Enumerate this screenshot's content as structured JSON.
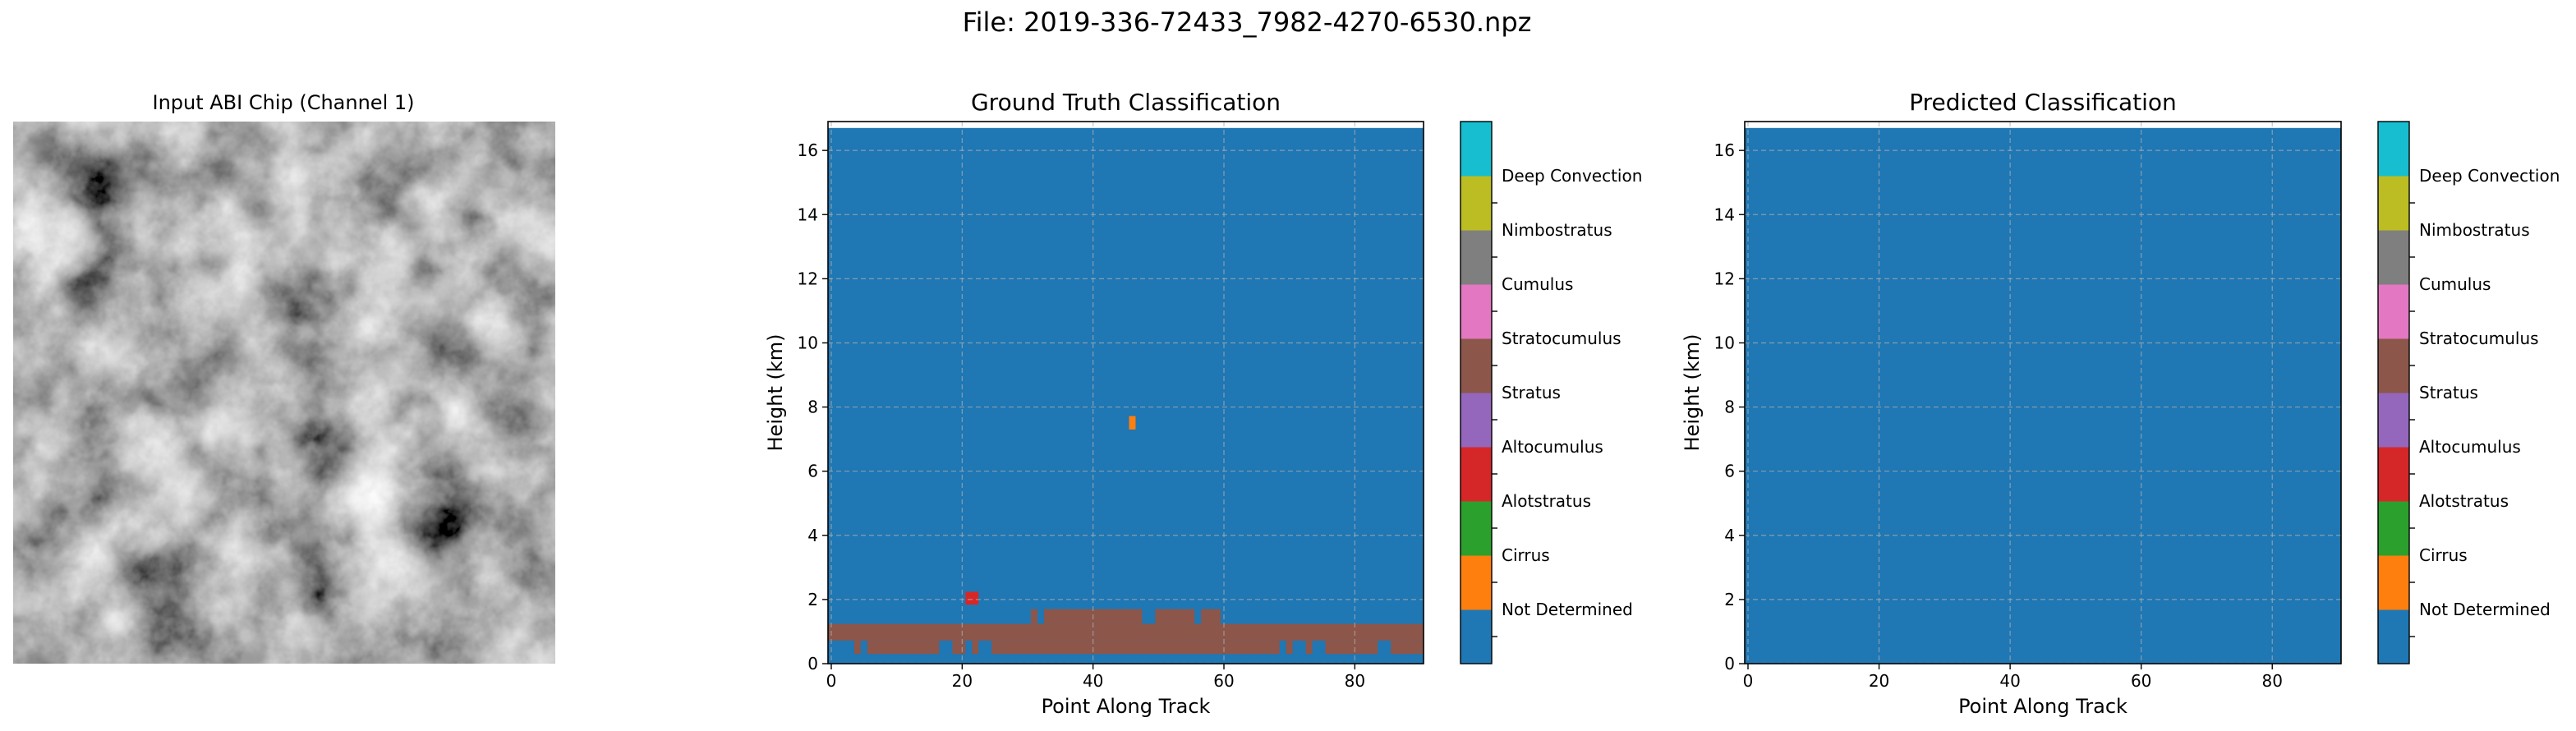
{
  "figure_title": "File: 2019-336-72433_7982-4270-6530.npz",
  "colors": {
    "classes": [
      "#1f77b4",
      "#ff7f0e",
      "#2ca02c",
      "#d62728",
      "#9467bd",
      "#8c564b",
      "#e377c2",
      "#7f7f7f",
      "#bcbd22",
      "#17becf"
    ],
    "grid": "#b0b0b0"
  },
  "chart_data": [
    {
      "type": "heatmap",
      "title": "Input ABI Chip (Channel 1)",
      "colormap": "gray",
      "axes": "off",
      "texture": "grayscale satellite cloud imagery"
    },
    {
      "type": "heatmap",
      "title": "Ground Truth Classification",
      "xlabel": "Point Along Track",
      "ylabel": "Height (km)",
      "xlim": [
        -0.5,
        90.5
      ],
      "ylim": [
        0,
        16.9
      ],
      "xticks": [
        0,
        20,
        40,
        60,
        80
      ],
      "yticks": [
        0,
        2,
        4,
        6,
        8,
        10,
        12,
        14,
        16
      ],
      "grid": true,
      "background_class": "Not Determined",
      "background_ymax": 16.7,
      "regions": [
        {
          "class": "Stratocumulus",
          "x0": -0.5,
          "x1": 90.5,
          "y0": 0.72,
          "y1": 1.24
        },
        {
          "class": "Stratocumulus",
          "x0": 3.5,
          "x1": 4.5,
          "y0": 0.3,
          "y1": 0.72
        },
        {
          "class": "Stratocumulus",
          "x0": 5.5,
          "x1": 16.5,
          "y0": 0.3,
          "y1": 0.72
        },
        {
          "class": "Stratocumulus",
          "x0": 18.5,
          "x1": 20.5,
          "y0": 0.3,
          "y1": 0.72
        },
        {
          "class": "Stratocumulus",
          "x0": 21.5,
          "x1": 22.5,
          "y0": 0.3,
          "y1": 0.72
        },
        {
          "class": "Stratocumulus",
          "x0": 24.5,
          "x1": 68.5,
          "y0": 0.3,
          "y1": 0.72
        },
        {
          "class": "Stratocumulus",
          "x0": 69.5,
          "x1": 70.5,
          "y0": 0.3,
          "y1": 0.72
        },
        {
          "class": "Stratocumulus",
          "x0": 72.5,
          "x1": 73.5,
          "y0": 0.3,
          "y1": 0.72
        },
        {
          "class": "Stratocumulus",
          "x0": 75.5,
          "x1": 83.5,
          "y0": 0.3,
          "y1": 0.72
        },
        {
          "class": "Stratocumulus",
          "x0": 85.5,
          "x1": 90.5,
          "y0": 0.3,
          "y1": 0.72
        },
        {
          "class": "Stratocumulus",
          "x0": 30.5,
          "x1": 31.5,
          "y0": 1.24,
          "y1": 1.7
        },
        {
          "class": "Stratocumulus",
          "x0": 32.5,
          "x1": 47.5,
          "y0": 1.24,
          "y1": 1.7
        },
        {
          "class": "Stratocumulus",
          "x0": 49.5,
          "x1": 55.5,
          "y0": 1.24,
          "y1": 1.7
        },
        {
          "class": "Stratocumulus",
          "x0": 56.5,
          "x1": 58.5,
          "y0": 1.24,
          "y1": 1.7
        },
        {
          "class": "Stratocumulus",
          "x0": 57.0,
          "x1": 59.5,
          "y0": 1.24,
          "y1": 1.7
        },
        {
          "class": "Altocumulus",
          "x0": 20.5,
          "x1": 22.5,
          "y0": 1.84,
          "y1": 2.24
        },
        {
          "class": "Cirrus",
          "x0": 45.5,
          "x1": 46.5,
          "y0": 7.3,
          "y1": 7.72
        }
      ]
    },
    {
      "type": "heatmap",
      "title": "Predicted Classification",
      "xlabel": "Point Along Track",
      "ylabel": "Height (km)",
      "xlim": [
        -0.5,
        90.5
      ],
      "ylim": [
        0,
        16.9
      ],
      "xticks": [
        0,
        20,
        40,
        60,
        80
      ],
      "yticks": [
        0,
        2,
        4,
        6,
        8,
        10,
        12,
        14,
        16
      ],
      "grid": true,
      "background_class": "Not Determined",
      "background_ymax": 16.7,
      "regions": []
    }
  ],
  "colorbar": {
    "labels": [
      "Not Determined",
      "Cirrus",
      "Alotstratus",
      "Altocumulus",
      "Stratus",
      "Stratocumulus",
      "Cumulus",
      "Nimbostratus",
      "Deep Convection"
    ]
  }
}
